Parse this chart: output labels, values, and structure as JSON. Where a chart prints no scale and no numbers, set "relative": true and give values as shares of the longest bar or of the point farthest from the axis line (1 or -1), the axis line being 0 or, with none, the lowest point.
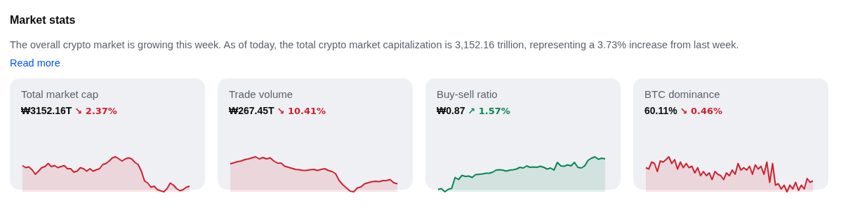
{
  "chart_data": [
    {
      "type": "other",
      "title": "Market stats",
      "annotations": [
        "The overall crypto market is growing this week. As of today, the total crypto market capitalization is 3,152.16 trillion, representing a 3.73% increase from last week.",
        "Read more"
      ]
    },
    {
      "type": "area",
      "title": "Total market cap",
      "subtitle": "₩3152.16T",
      "annotations": [
        "↘ 2.37%"
      ],
      "relative": true,
      "categories": [
        null,
        null,
        null,
        null,
        null,
        null,
        null,
        null,
        null,
        null,
        null,
        null,
        null,
        null,
        null,
        null,
        null,
        null,
        null,
        null,
        null,
        null,
        null,
        null,
        null,
        null,
        null,
        null,
        null,
        null,
        null,
        null,
        null,
        null,
        null,
        null,
        null,
        null,
        null,
        null,
        null,
        null,
        null,
        null,
        null,
        null,
        null,
        null,
        null,
        null,
        null,
        null,
        null
      ],
      "series": [
        {
          "color": "#cf202f",
          "values": [
            0.75,
            0.69,
            0.71,
            0.63,
            0.5,
            0.59,
            0.69,
            0.72,
            0.81,
            0.72,
            0.75,
            0.69,
            0.72,
            0.75,
            0.66,
            0.66,
            0.56,
            0.59,
            0.69,
            0.66,
            0.59,
            0.66,
            0.59,
            0.63,
            0.66,
            0.78,
            0.81,
            0.88,
            0.97,
            1,
            0.94,
            0.88,
            0.94,
            0.97,
            0.94,
            0.84,
            0.78,
            0.59,
            0.31,
            0.25,
            0.13,
            0.16,
            0.06,
            0.03,
            0,
            0.09,
            0.25,
            0.19,
            0.09,
            0.03,
            0.06,
            0.13,
            0.16
          ]
        }
      ]
    },
    {
      "type": "area",
      "title": "Trade volume",
      "subtitle": "₩267.45T",
      "annotations": [
        "↘ 10.41%"
      ],
      "relative": true,
      "categories": [
        null,
        null,
        null,
        null,
        null,
        null,
        null,
        null,
        null,
        null,
        null,
        null,
        null,
        null,
        null,
        null,
        null,
        null,
        null,
        null,
        null,
        null,
        null,
        null,
        null,
        null,
        null,
        null,
        null,
        null,
        null,
        null,
        null,
        null,
        null,
        null,
        null,
        null,
        null,
        null,
        null,
        null,
        null,
        null,
        null,
        null,
        null
      ],
      "series": [
        {
          "color": "#cf202f",
          "values": [
            0.8,
            0.83,
            0.86,
            0.88,
            0.92,
            0.94,
            0.97,
            1,
            0.94,
            0.98,
            0.94,
            0.97,
            0.88,
            0.82,
            0.82,
            0.73,
            0.7,
            0.67,
            0.64,
            0.63,
            0.61,
            0.61,
            0.63,
            0.64,
            0.61,
            0.64,
            0.66,
            0.61,
            0.58,
            0.52,
            0.32,
            0.2,
            0.11,
            0.02,
            0,
            0.11,
            0.14,
            0.23,
            0.26,
            0.29,
            0.3,
            0.29,
            0.32,
            0.32,
            0.35,
            0.26,
            0.23
          ]
        }
      ]
    },
    {
      "type": "area",
      "title": "Buy-sell ratio",
      "subtitle": "₩0.87",
      "annotations": [
        "↗ 1.57%"
      ],
      "relative": true,
      "categories": [
        null,
        null,
        null,
        null,
        null,
        null,
        null,
        null,
        null,
        null,
        null,
        null,
        null,
        null,
        null,
        null,
        null,
        null,
        null,
        null,
        null,
        null,
        null,
        null,
        null,
        null,
        null,
        null,
        null,
        null,
        null,
        null,
        null,
        null,
        null,
        null,
        null,
        null,
        null,
        null,
        null,
        null,
        null,
        null,
        null,
        null,
        null,
        null,
        null,
        null
      ],
      "series": [
        {
          "color": "#098551",
          "values": [
            0.07,
            0.09,
            0,
            0.07,
            0.1,
            0.41,
            0.35,
            0.47,
            0.44,
            0.45,
            0.41,
            0.49,
            0.5,
            0.51,
            0.53,
            0.53,
            0.56,
            0.62,
            0.63,
            0.62,
            0.59,
            0.62,
            0.63,
            0.65,
            0.7,
            0.68,
            0.74,
            0.7,
            0.71,
            0.7,
            0.73,
            0.7,
            0.65,
            0.68,
            0.62,
            0.84,
            0.74,
            0.73,
            0.77,
            0.74,
            0.84,
            0.7,
            0.68,
            0.74,
            0.9,
            0.96,
            1,
            0.93,
            0.96,
            0.94
          ]
        }
      ]
    },
    {
      "type": "area",
      "title": "BTC dominance",
      "subtitle": "60.11%",
      "annotations": [
        "↘ 0.46%"
      ],
      "relative": true,
      "categories": [
        null,
        null,
        null,
        null,
        null,
        null,
        null,
        null,
        null,
        null,
        null,
        null,
        null,
        null,
        null,
        null,
        null,
        null,
        null,
        null,
        null,
        null,
        null,
        null,
        null,
        null,
        null,
        null,
        null,
        null,
        null,
        null,
        null,
        null,
        null,
        null,
        null,
        null,
        null,
        null,
        null,
        null,
        null,
        null,
        null,
        null,
        null,
        null,
        null,
        null,
        null,
        null,
        null,
        null,
        null,
        null,
        null,
        null,
        null
      ],
      "series": [
        {
          "color": "#cf202f",
          "values": [
            0.69,
            0.65,
            0.85,
            0.81,
            0.58,
            0.88,
            0.85,
            0.92,
            1,
            0.81,
            0.92,
            0.65,
            0.85,
            0.69,
            0.81,
            0.69,
            0.73,
            0.54,
            0.69,
            0.46,
            0.58,
            0.46,
            0.54,
            0.35,
            0.58,
            0.5,
            0.46,
            0.35,
            0.54,
            0.46,
            0.62,
            0.5,
            0.81,
            0.62,
            0.69,
            0.62,
            0.73,
            0.5,
            0.77,
            0.65,
            0.73,
            0.5,
            0.85,
            0.27,
            0.81,
            0.19,
            0.23,
            0.08,
            0.19,
            0,
            0.19,
            0.08,
            0.27,
            0.04,
            0.19,
            0.08,
            0.38,
            0.27,
            0.31
          ]
        }
      ]
    }
  ]
}
